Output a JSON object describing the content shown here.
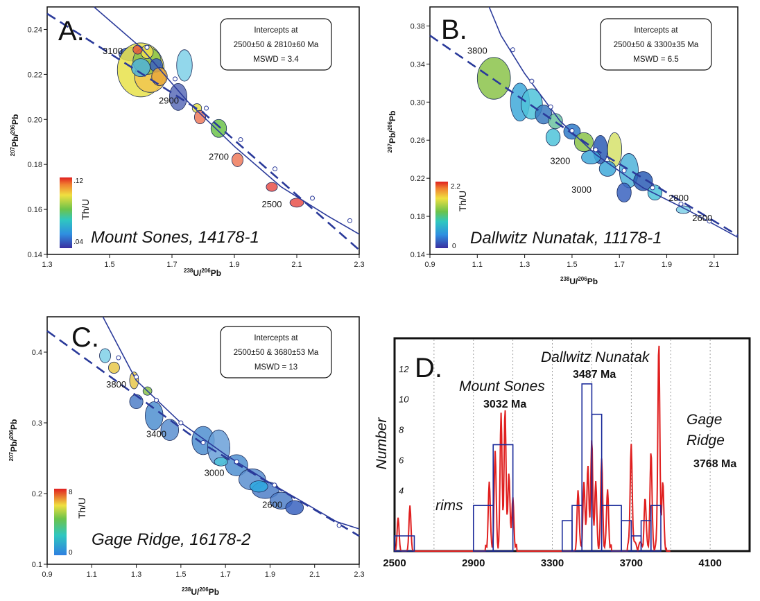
{
  "chart_data": [
    {
      "type": "scatter",
      "panel_label": "A.",
      "sample_label": "Mount Sones, 14178-1",
      "xlabel": {
        "sup": "238",
        "main": "U/",
        "sup2": "206",
        "main2": "Pb"
      },
      "ylabel": {
        "sup": "207",
        "main": "Pb/",
        "sup2": "206",
        "main2": "Pb"
      },
      "xlim": [
        1.3,
        2.3
      ],
      "ylim": [
        0.14,
        0.25
      ],
      "xticks": [
        "1.3",
        "1.5",
        "1.7",
        "1.9",
        "2.1",
        "2.3"
      ],
      "yticks": [
        "0.14",
        "0.16",
        "0.18",
        "0.20",
        "0.22",
        "0.24"
      ],
      "intercepts": [
        "Intercepts at",
        "2500±50 & 2810±60 Ma",
        "MSWD = 3.4"
      ],
      "colorbar": {
        "label": "Th/U",
        "max": ".12",
        "min": ".04"
      },
      "concordia_ages": [
        {
          "label": "3100",
          "x": 1.51,
          "y": 0.229
        },
        {
          "label": "2900",
          "x": 1.69,
          "y": 0.207
        },
        {
          "label": "2700",
          "x": 1.85,
          "y": 0.182
        },
        {
          "label": "2500",
          "x": 2.02,
          "y": 0.161
        }
      ],
      "ellipses": [
        {
          "x": 1.57,
          "y": 0.229,
          "rx": 0.04,
          "ry": 0.003,
          "c": "#3a63c0"
        },
        {
          "x": 1.6,
          "y": 0.222,
          "rx": 0.075,
          "ry": 0.012,
          "c": "#e8e24a"
        },
        {
          "x": 1.63,
          "y": 0.219,
          "rx": 0.05,
          "ry": 0.007,
          "c": "#f1c64f"
        },
        {
          "x": 1.62,
          "y": 0.226,
          "rx": 0.045,
          "ry": 0.006,
          "c": "#8bc34a"
        },
        {
          "x": 1.6,
          "y": 0.223,
          "rx": 0.03,
          "ry": 0.004,
          "c": "#4fb3d9"
        },
        {
          "x": 1.65,
          "y": 0.224,
          "rx": 0.02,
          "ry": 0.003,
          "c": "#3a63c0"
        },
        {
          "x": 1.62,
          "y": 0.23,
          "rx": 0.02,
          "ry": 0.003,
          "c": "#f2e04b"
        },
        {
          "x": 1.59,
          "y": 0.231,
          "rx": 0.015,
          "ry": 0.002,
          "c": "#e85a3b"
        },
        {
          "x": 1.66,
          "y": 0.219,
          "rx": 0.025,
          "ry": 0.004,
          "c": "#e8a83c"
        },
        {
          "x": 1.74,
          "y": 0.224,
          "rx": 0.025,
          "ry": 0.007,
          "c": "#7fd0e8"
        },
        {
          "x": 1.72,
          "y": 0.21,
          "rx": 0.028,
          "ry": 0.006,
          "c": "#5a6cb8"
        },
        {
          "x": 1.78,
          "y": 0.205,
          "rx": 0.015,
          "ry": 0.002,
          "c": "#e8e24a"
        },
        {
          "x": 1.79,
          "y": 0.201,
          "rx": 0.018,
          "ry": 0.003,
          "c": "#ee7a5a"
        },
        {
          "x": 1.85,
          "y": 0.196,
          "rx": 0.025,
          "ry": 0.004,
          "c": "#6cc34a"
        },
        {
          "x": 1.91,
          "y": 0.182,
          "rx": 0.018,
          "ry": 0.003,
          "c": "#ee7a5a"
        },
        {
          "x": 2.02,
          "y": 0.17,
          "rx": 0.018,
          "ry": 0.002,
          "c": "#e8504a"
        },
        {
          "x": 2.1,
          "y": 0.163,
          "rx": 0.022,
          "ry": 0.002,
          "c": "#e8504a"
        }
      ]
    },
    {
      "type": "scatter",
      "panel_label": "B.",
      "sample_label": "Dallwitz Nunatak, 11178-1",
      "xlabel": {
        "sup": "238",
        "main": "U/",
        "sup2": "206",
        "main2": "Pb"
      },
      "ylabel": {
        "sup": "207",
        "main": "Pb/",
        "sup2": "206",
        "main2": "Pb"
      },
      "xlim": [
        0.9,
        2.2
      ],
      "ylim": [
        0.14,
        0.4
      ],
      "xticks": [
        "0.9",
        "1.1",
        "1.3",
        "1.5",
        "1.7",
        "1.9",
        "2.1"
      ],
      "yticks": [
        "0.14",
        "0.18",
        "0.22",
        "0.26",
        "0.30",
        "0.34",
        "0.38"
      ],
      "intercepts": [
        "Intercepts at",
        "2500±50 & 3300±35 Ma",
        "MSWD = 6.5"
      ],
      "colorbar": {
        "label": "Th/U",
        "max": "2.2",
        "min": "0"
      },
      "concordia_ages": [
        {
          "label": "3800",
          "x": 1.1,
          "y": 0.351
        },
        {
          "label": "3200",
          "x": 1.45,
          "y": 0.235
        },
        {
          "label": "3000",
          "x": 1.54,
          "y": 0.205
        },
        {
          "label": "2800",
          "x": 1.95,
          "y": 0.196
        },
        {
          "label": "2600",
          "x": 2.05,
          "y": 0.175
        }
      ],
      "ellipses": [
        {
          "x": 1.17,
          "y": 0.325,
          "rx": 0.07,
          "ry": 0.022,
          "c": "#8bc34a"
        },
        {
          "x": 1.28,
          "y": 0.3,
          "rx": 0.04,
          "ry": 0.02,
          "c": "#3fa9d9"
        },
        {
          "x": 1.33,
          "y": 0.298,
          "rx": 0.045,
          "ry": 0.016,
          "c": "#4fc3d9"
        },
        {
          "x": 1.38,
          "y": 0.287,
          "rx": 0.035,
          "ry": 0.01,
          "c": "#3a7ac0"
        },
        {
          "x": 1.43,
          "y": 0.28,
          "rx": 0.03,
          "ry": 0.008,
          "c": "#6cc3a0"
        },
        {
          "x": 1.5,
          "y": 0.269,
          "rx": 0.035,
          "ry": 0.008,
          "c": "#2f7bc8"
        },
        {
          "x": 1.55,
          "y": 0.258,
          "rx": 0.04,
          "ry": 0.01,
          "c": "#8bc34a"
        },
        {
          "x": 1.62,
          "y": 0.25,
          "rx": 0.03,
          "ry": 0.015,
          "c": "#2b5db5"
        },
        {
          "x": 1.68,
          "y": 0.25,
          "rx": 0.03,
          "ry": 0.018,
          "c": "#d6e26b"
        },
        {
          "x": 1.65,
          "y": 0.23,
          "rx": 0.035,
          "ry": 0.008,
          "c": "#3fa9d9"
        },
        {
          "x": 1.74,
          "y": 0.228,
          "rx": 0.04,
          "ry": 0.018,
          "c": "#4fb3d9"
        },
        {
          "x": 1.8,
          "y": 0.217,
          "rx": 0.04,
          "ry": 0.01,
          "c": "#2b5db5"
        },
        {
          "x": 1.85,
          "y": 0.205,
          "rx": 0.03,
          "ry": 0.008,
          "c": "#4fc3d9"
        },
        {
          "x": 1.97,
          "y": 0.187,
          "rx": 0.03,
          "ry": 0.004,
          "c": "#7fd0e8"
        },
        {
          "x": 1.42,
          "y": 0.263,
          "rx": 0.03,
          "ry": 0.009,
          "c": "#4fc3d9"
        },
        {
          "x": 1.58,
          "y": 0.242,
          "rx": 0.04,
          "ry": 0.007,
          "c": "#3fa9d9"
        },
        {
          "x": 1.72,
          "y": 0.205,
          "rx": 0.03,
          "ry": 0.01,
          "c": "#3a63c0"
        }
      ]
    },
    {
      "type": "scatter",
      "panel_label": "C.",
      "sample_label": "Gage Ridge, 16178-2",
      "xlabel": {
        "sup": "238",
        "main": "U/",
        "sup2": "206",
        "main2": "Pb"
      },
      "ylabel": {
        "sup": "207",
        "main": "Pb/",
        "sup2": "206",
        "main2": "Pb"
      },
      "xlim": [
        0.9,
        2.3
      ],
      "ylim": [
        0.1,
        0.45
      ],
      "xticks": [
        "0.9",
        "1.1",
        "1.3",
        "1.5",
        "1.7",
        "1.9",
        "2.1",
        "2.3"
      ],
      "yticks": [
        "0.1",
        "0.2",
        "0.3",
        "0.4"
      ],
      "intercepts": [
        "Intercepts at",
        "2500±50 & 3680±53 Ma",
        "MSWD = 13"
      ],
      "colorbar": {
        "label": "Th/U",
        "max": "8",
        "min": "0"
      },
      "concordia_ages": [
        {
          "label": "3800",
          "x": 1.21,
          "y": 0.35
        },
        {
          "label": "3400",
          "x": 1.39,
          "y": 0.28
        },
        {
          "label": "3000",
          "x": 1.65,
          "y": 0.225
        },
        {
          "label": "2600",
          "x": 1.91,
          "y": 0.18
        }
      ],
      "ellipses": [
        {
          "x": 1.16,
          "y": 0.395,
          "rx": 0.025,
          "ry": 0.01,
          "c": "#7fd0e8"
        },
        {
          "x": 1.2,
          "y": 0.378,
          "rx": 0.025,
          "ry": 0.008,
          "c": "#e8c84a"
        },
        {
          "x": 1.29,
          "y": 0.36,
          "rx": 0.02,
          "ry": 0.012,
          "c": "#e8c84a"
        },
        {
          "x": 1.3,
          "y": 0.33,
          "rx": 0.03,
          "ry": 0.01,
          "c": "#4f7fc8"
        },
        {
          "x": 1.38,
          "y": 0.31,
          "rx": 0.04,
          "ry": 0.02,
          "c": "#4f8fd0"
        },
        {
          "x": 1.45,
          "y": 0.29,
          "rx": 0.04,
          "ry": 0.015,
          "c": "#5a8fd0"
        },
        {
          "x": 1.6,
          "y": 0.275,
          "rx": 0.05,
          "ry": 0.02,
          "c": "#4f8fd0"
        },
        {
          "x": 1.67,
          "y": 0.265,
          "rx": 0.05,
          "ry": 0.025,
          "c": "#6aa0d8"
        },
        {
          "x": 1.75,
          "y": 0.24,
          "rx": 0.05,
          "ry": 0.015,
          "c": "#4f8fd0"
        },
        {
          "x": 1.82,
          "y": 0.22,
          "rx": 0.06,
          "ry": 0.015,
          "c": "#5a8fd0"
        },
        {
          "x": 1.88,
          "y": 0.205,
          "rx": 0.06,
          "ry": 0.012,
          "c": "#4f7fc8"
        },
        {
          "x": 1.95,
          "y": 0.19,
          "rx": 0.05,
          "ry": 0.012,
          "c": "#4f7fc8"
        },
        {
          "x": 2.01,
          "y": 0.18,
          "rx": 0.04,
          "ry": 0.01,
          "c": "#3a63c0"
        },
        {
          "x": 1.35,
          "y": 0.345,
          "rx": 0.02,
          "ry": 0.006,
          "c": "#8bc34a"
        },
        {
          "x": 1.68,
          "y": 0.245,
          "rx": 0.03,
          "ry": 0.006,
          "c": "#4fc3d9"
        },
        {
          "x": 1.85,
          "y": 0.21,
          "rx": 0.04,
          "ry": 0.008,
          "c": "#2fa9e0"
        }
      ]
    },
    {
      "type": "histogram",
      "panel_label": "D.",
      "ylabel": "Number",
      "xlim": [
        2500,
        4300
      ],
      "ylim": [
        0,
        14
      ],
      "xticks": [
        "2500",
        "2900",
        "3300",
        "3700",
        "4100"
      ],
      "yticks": [
        "4",
        "6",
        "8",
        "10",
        "12"
      ],
      "annotations": [
        {
          "text": "rims",
          "style": "italic"
        },
        {
          "text": "Mount Sones",
          "style": "italic"
        },
        {
          "text": "3032 Ma",
          "style": "bold"
        },
        {
          "text": "Dallwitz Nunatak",
          "style": "italic"
        },
        {
          "text": "3487 Ma",
          "style": "bold"
        },
        {
          "text": "Gage",
          "style": "italic"
        },
        {
          "text": "Ridge",
          "style": "italic"
        },
        {
          "text": "3768 Ma",
          "style": "bold"
        }
      ],
      "bins": [
        {
          "x0": 2500,
          "x1": 2600,
          "n": 1
        },
        {
          "x0": 2900,
          "x1": 3000,
          "n": 3
        },
        {
          "x0": 3000,
          "x1": 3100,
          "n": 7
        },
        {
          "x0": 3350,
          "x1": 3400,
          "n": 2
        },
        {
          "x0": 3400,
          "x1": 3450,
          "n": 3
        },
        {
          "x0": 3450,
          "x1": 3500,
          "n": 11
        },
        {
          "x0": 3500,
          "x1": 3550,
          "n": 9
        },
        {
          "x0": 3550,
          "x1": 3650,
          "n": 3
        },
        {
          "x0": 3650,
          "x1": 3700,
          "n": 2
        },
        {
          "x0": 3700,
          "x1": 3750,
          "n": 1
        },
        {
          "x0": 3750,
          "x1": 3800,
          "n": 2
        },
        {
          "x0": 3800,
          "x1": 3850,
          "n": 3
        }
      ],
      "peaks": [
        {
          "x": 2518,
          "h": 2.2
        },
        {
          "x": 2578,
          "h": 3.0
        },
        {
          "x": 2980,
          "h": 4.0
        },
        {
          "x": 3010,
          "h": 6.0
        },
        {
          "x": 3040,
          "h": 8.5
        },
        {
          "x": 3060,
          "h": 9.0
        },
        {
          "x": 3080,
          "h": 5.0
        },
        {
          "x": 3100,
          "h": 3.0
        },
        {
          "x": 3430,
          "h": 3.5
        },
        {
          "x": 3460,
          "h": 4.0
        },
        {
          "x": 3480,
          "h": 5.5
        },
        {
          "x": 3500,
          "h": 7.0
        },
        {
          "x": 3520,
          "h": 4.0
        },
        {
          "x": 3550,
          "h": 5.5
        },
        {
          "x": 3580,
          "h": 3.5
        },
        {
          "x": 3700,
          "h": 6.8
        },
        {
          "x": 3770,
          "h": 3.0
        },
        {
          "x": 3800,
          "h": 6.0
        },
        {
          "x": 3840,
          "h": 13.5
        },
        {
          "x": 3860,
          "h": 4.0
        }
      ]
    }
  ]
}
